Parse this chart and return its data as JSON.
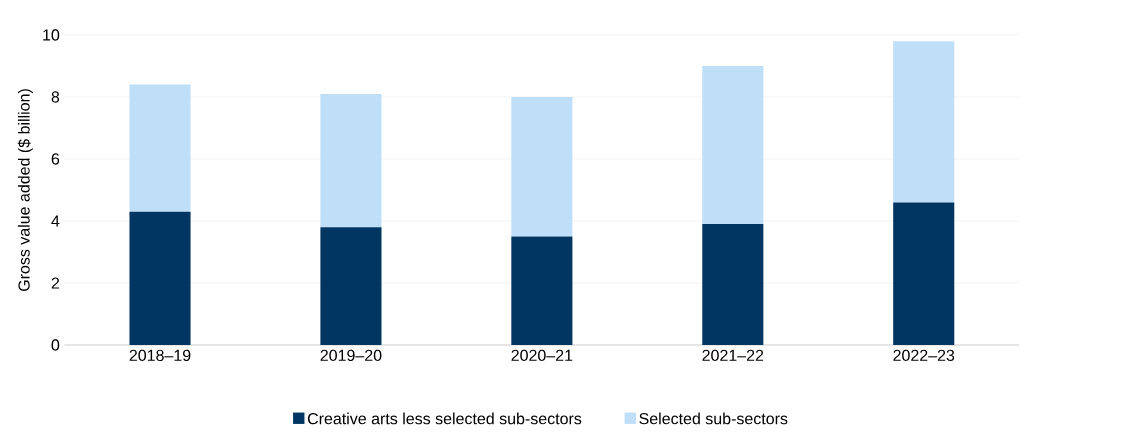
{
  "chart_data": {
    "type": "bar",
    "stacked": true,
    "ylabel": "Gross value added ($ billion)",
    "categories": [
      "2018–19",
      "2019–20",
      "2020–21",
      "2021–22",
      "2022–23"
    ],
    "series": [
      {
        "name": "Creative arts less selected sub-sectors",
        "color": "#003661",
        "values": [
          4.3,
          3.8,
          3.5,
          3.9,
          4.6
        ]
      },
      {
        "name": "Selected sub-sectors",
        "color": "#bfdff9",
        "values": [
          4.1,
          4.3,
          4.5,
          5.1,
          5.2
        ]
      }
    ],
    "ylim": [
      0,
      10
    ],
    "yticks": [
      0,
      2,
      4,
      6,
      8,
      10
    ],
    "grid": "y",
    "legend": "bottom"
  }
}
